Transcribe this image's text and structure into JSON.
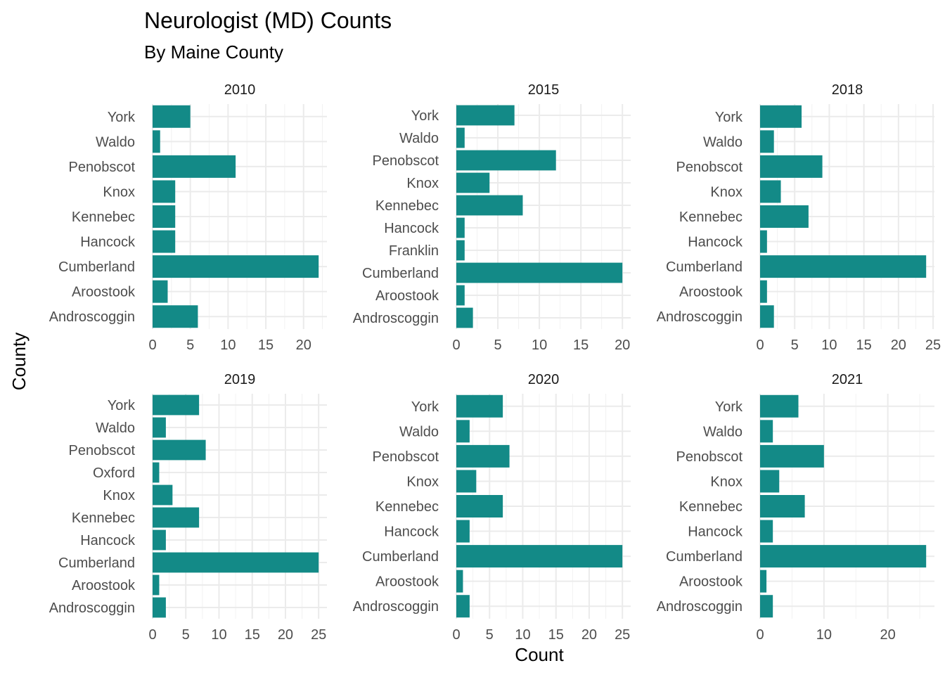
{
  "chart_data": {
    "type": "bar",
    "orientation": "horizontal",
    "title": "Neurologist (MD) Counts",
    "subtitle": "By Maine County",
    "xlabel": "Count",
    "ylabel": "County",
    "bar_color": "#138a87",
    "grid": true,
    "legend": "none",
    "facets": [
      {
        "label": "2010",
        "categories": [
          "Androscoggin",
          "Aroostook",
          "Cumberland",
          "Hancock",
          "Kennebec",
          "Knox",
          "Penobscot",
          "Waldo",
          "York"
        ],
        "values": [
          6,
          2,
          22,
          3,
          3,
          3,
          11,
          1,
          5
        ],
        "xlim": [
          0,
          23.1
        ],
        "xticks": [
          0,
          5,
          10,
          15,
          20
        ]
      },
      {
        "label": "2015",
        "categories": [
          "Androscoggin",
          "Aroostook",
          "Cumberland",
          "Franklin",
          "Hancock",
          "Kennebec",
          "Knox",
          "Penobscot",
          "Waldo",
          "York"
        ],
        "values": [
          2,
          1,
          20,
          1,
          1,
          8,
          4,
          12,
          1,
          7
        ],
        "xlim": [
          0,
          21
        ],
        "xticks": [
          0,
          5,
          10,
          15,
          20
        ]
      },
      {
        "label": "2018",
        "categories": [
          "Androscoggin",
          "Aroostook",
          "Cumberland",
          "Hancock",
          "Kennebec",
          "Knox",
          "Penobscot",
          "Waldo",
          "York"
        ],
        "values": [
          2,
          1,
          24,
          1,
          7,
          3,
          9,
          2,
          6
        ],
        "xlim": [
          0,
          25.2
        ],
        "xticks": [
          0,
          5,
          10,
          15,
          20,
          25
        ]
      },
      {
        "label": "2019",
        "categories": [
          "Androscoggin",
          "Aroostook",
          "Cumberland",
          "Hancock",
          "Kennebec",
          "Knox",
          "Oxford",
          "Penobscot",
          "Waldo",
          "York"
        ],
        "values": [
          2,
          1,
          25,
          2,
          7,
          3,
          1,
          8,
          2,
          7
        ],
        "xlim": [
          0,
          26.25
        ],
        "xticks": [
          0,
          5,
          10,
          15,
          20,
          25
        ]
      },
      {
        "label": "2020",
        "categories": [
          "Androscoggin",
          "Aroostook",
          "Cumberland",
          "Hancock",
          "Kennebec",
          "Knox",
          "Penobscot",
          "Waldo",
          "York"
        ],
        "values": [
          2,
          1,
          25,
          2,
          7,
          3,
          8,
          2,
          7
        ],
        "xlim": [
          0,
          26.25
        ],
        "xticks": [
          0,
          5,
          10,
          15,
          20,
          25
        ]
      },
      {
        "label": "2021",
        "categories": [
          "Androscoggin",
          "Aroostook",
          "Cumberland",
          "Hancock",
          "Kennebec",
          "Knox",
          "Penobscot",
          "Waldo",
          "York"
        ],
        "values": [
          2,
          1,
          26,
          2,
          7,
          3,
          10,
          2,
          6
        ],
        "xlim": [
          0,
          27.3
        ],
        "xticks": [
          0,
          10,
          20
        ]
      }
    ]
  }
}
